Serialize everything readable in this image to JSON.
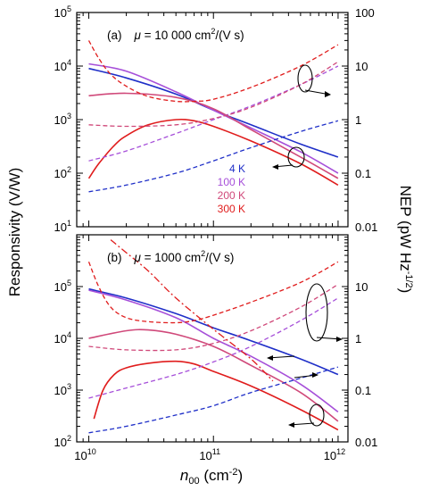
{
  "chart_data": [
    {
      "panel": "(a)",
      "title": "μ = 10 000 cm²/(V s)",
      "type": "line",
      "x_scale": "log",
      "y_left_scale": "log",
      "y_right_scale": "log",
      "xlim": [
        8000000000.0,
        1200000000000.0
      ],
      "ylim_left": [
        10,
        100000
      ],
      "ylim_right": [
        0.01,
        100
      ],
      "legend_position": "center-right",
      "legend": [
        {
          "name": "4 K",
          "color": "#1f2fc8"
        },
        {
          "name": "100 K",
          "color": "#a64fd9"
        },
        {
          "name": "200 K",
          "color": "#d0497a"
        },
        {
          "name": "300 K",
          "color": "#e01c1c"
        }
      ],
      "series": [
        {
          "name": "4 K",
          "quantity": "responsivity",
          "axis": "left",
          "style": "solid",
          "color": "#1f2fc8",
          "x": [
            10000000000.0,
            20000000000.0,
            50000000000.0,
            100000000000.0,
            200000000000.0,
            500000000000.0,
            1000000000000.0
          ],
          "values": [
            9000,
            6000,
            3000,
            1500,
            800,
            350,
            200
          ]
        },
        {
          "name": "100 K",
          "quantity": "responsivity",
          "axis": "left",
          "style": "solid",
          "color": "#a64fd9",
          "x": [
            10000000000.0,
            20000000000.0,
            50000000000.0,
            100000000000.0,
            200000000000.0,
            500000000000.0,
            1000000000000.0
          ],
          "values": [
            11000,
            8000,
            3300,
            1500,
            700,
            250,
            100
          ]
        },
        {
          "name": "200 K",
          "quantity": "responsivity",
          "axis": "left",
          "style": "solid",
          "color": "#d0497a",
          "x": [
            10000000000.0,
            20000000000.0,
            50000000000.0,
            100000000000.0,
            200000000000.0,
            500000000000.0,
            1000000000000.0
          ],
          "values": [
            2800,
            3100,
            2600,
            1600,
            650,
            200,
            80
          ]
        },
        {
          "name": "300 K",
          "quantity": "responsivity",
          "axis": "left",
          "style": "solid",
          "color": "#e01c1c",
          "x": [
            10000000000.0,
            12000000000.0,
            16000000000.0,
            20000000000.0,
            30000000000.0,
            50000000000.0,
            70000000000.0,
            100000000000.0,
            200000000000.0,
            500000000000.0,
            1000000000000.0
          ],
          "values": [
            80,
            150,
            330,
            500,
            800,
            1000,
            950,
            750,
            400,
            150,
            60
          ]
        },
        {
          "name": "4 K",
          "quantity": "NEP",
          "axis": "right",
          "style": "dashed",
          "color": "#1f2fc8",
          "x": [
            10000000000.0,
            20000000000.0,
            50000000000.0,
            100000000000.0,
            200000000000.0,
            500000000000.0,
            1000000000000.0
          ],
          "values": [
            0.045,
            0.06,
            0.1,
            0.17,
            0.3,
            0.6,
            0.95
          ]
        },
        {
          "name": "100 K",
          "quantity": "NEP",
          "axis": "right",
          "style": "dashed",
          "color": "#a64fd9",
          "x": [
            10000000000.0,
            20000000000.0,
            50000000000.0,
            100000000000.0,
            200000000000.0,
            500000000000.0,
            1000000000000.0
          ],
          "values": [
            0.17,
            0.26,
            0.55,
            1.0,
            1.8,
            4.5,
            10
          ]
        },
        {
          "name": "200 K",
          "quantity": "NEP",
          "axis": "right",
          "style": "dashed",
          "color": "#d0497a",
          "x": [
            10000000000.0,
            20000000000.0,
            50000000000.0,
            100000000000.0,
            200000000000.0,
            500000000000.0,
            1000000000000.0
          ],
          "values": [
            0.8,
            0.75,
            0.8,
            1.05,
            1.7,
            4.5,
            12
          ]
        },
        {
          "name": "300 K",
          "quantity": "NEP",
          "axis": "right",
          "style": "dashed",
          "color": "#e01c1c",
          "x": [
            10000000000.0,
            12000000000.0,
            15000000000.0,
            20000000000.0,
            30000000000.0,
            50000000000.0,
            70000000000.0,
            100000000000.0,
            200000000000.0,
            500000000000.0,
            1000000000000.0
          ],
          "values": [
            30,
            14,
            7,
            4.2,
            2.7,
            2.2,
            2.2,
            2.4,
            4,
            10,
            25
          ]
        }
      ]
    },
    {
      "panel": "(b)",
      "title": "μ = 1000 cm²/(V s)",
      "type": "line",
      "x_scale": "log",
      "y_left_scale": "log",
      "y_right_scale": "log",
      "xlim": [
        8000000000.0,
        1200000000000.0
      ],
      "ylim_left": [
        100,
        1000000
      ],
      "ylim_right": [
        0.01,
        100
      ],
      "series": [
        {
          "name": "4 K",
          "quantity": "responsivity",
          "axis": "left",
          "style": "solid",
          "color": "#1f2fc8",
          "x": [
            10000000000.0,
            20000000000.0,
            50000000000.0,
            100000000000.0,
            200000000000.0,
            500000000000.0,
            1000000000000.0
          ],
          "values": [
            90000,
            60000,
            30000,
            16000,
            9000,
            4000,
            2000
          ]
        },
        {
          "name": "100 K",
          "quantity": "responsivity",
          "axis": "left",
          "style": "solid",
          "color": "#a64fd9",
          "x": [
            10000000000.0,
            20000000000.0,
            50000000000.0,
            100000000000.0,
            200000000000.0,
            500000000000.0,
            1000000000000.0
          ],
          "values": [
            85000,
            55000,
            25000,
            10000,
            4500,
            1300,
            380
          ]
        },
        {
          "name": "200 K",
          "quantity": "responsivity",
          "axis": "left",
          "style": "solid",
          "color": "#d0497a",
          "x": [
            10000000000.0,
            20000000000.0,
            30000000000.0,
            50000000000.0,
            100000000000.0,
            200000000000.0,
            500000000000.0,
            1000000000000.0
          ],
          "values": [
            10000,
            14000,
            14500,
            12000,
            7000,
            3000,
            900,
            250
          ]
        },
        {
          "name": "300 K",
          "quantity": "responsivity",
          "axis": "left",
          "style": "solid",
          "color": "#e01c1c",
          "x": [
            11000000000.0,
            13000000000.0,
            16000000000.0,
            20000000000.0,
            30000000000.0,
            50000000000.0,
            70000000000.0,
            100000000000.0,
            200000000000.0,
            500000000000.0,
            1000000000000.0
          ],
          "values": [
            280,
            1000,
            2000,
            2700,
            3300,
            3600,
            3200,
            2300,
            1200,
            420,
            170
          ]
        },
        {
          "name": "4 K",
          "quantity": "NEP",
          "axis": "right",
          "style": "dashed",
          "color": "#1f2fc8",
          "x": [
            10000000000.0,
            20000000000.0,
            50000000000.0,
            100000000000.0,
            200000000000.0,
            500000000000.0,
            1000000000000.0
          ],
          "values": [
            0.015,
            0.02,
            0.033,
            0.05,
            0.09,
            0.17,
            0.28
          ]
        },
        {
          "name": "100 K",
          "quantity": "NEP",
          "axis": "right",
          "style": "dashed",
          "color": "#a64fd9",
          "x": [
            10000000000.0,
            20000000000.0,
            50000000000.0,
            100000000000.0,
            200000000000.0,
            500000000000.0,
            1000000000000.0
          ],
          "values": [
            0.07,
            0.11,
            0.2,
            0.35,
            0.7,
            2.2,
            6
          ]
        },
        {
          "name": "200 K",
          "quantity": "NEP",
          "axis": "right",
          "style": "dashed",
          "color": "#d0497a",
          "x": [
            10000000000.0,
            20000000000.0,
            50000000000.0,
            100000000000.0,
            200000000000.0,
            500000000000.0,
            1000000000000.0
          ],
          "values": [
            0.7,
            0.6,
            0.6,
            0.8,
            1.4,
            4,
            11
          ]
        },
        {
          "name": "300 K",
          "quantity": "NEP",
          "axis": "right",
          "style": "dashed",
          "color": "#e01c1c",
          "x": [
            10000000000.0,
            12000000000.0,
            15000000000.0,
            20000000000.0,
            30000000000.0,
            50000000000.0,
            70000000000.0,
            100000000000.0,
            200000000000.0,
            500000000000.0,
            1000000000000.0
          ],
          "values": [
            30,
            10,
            4,
            2.5,
            2.1,
            2,
            2.2,
            2.8,
            5,
            12,
            30
          ]
        },
        {
          "name": "300 K",
          "quantity": "NEP",
          "axis": "right",
          "style": "dashdot",
          "color": "#e01c1c",
          "x": [
            15000000000.0,
            20000000000.0,
            30000000000.0,
            50000000000.0,
            100000000000.0,
            200000000000.0,
            300000000000.0
          ],
          "values": [
            80,
            45,
            20,
            6,
            1.5,
            0.4,
            0.15
          ]
        }
      ]
    }
  ],
  "labels": {
    "y_left": "Responsivity (V/W)",
    "y_right": "NEP (pW Hz",
    "y_right_sup": "-1/2",
    "y_right_end": ")",
    "x": "n",
    "x_sub": "00",
    "x_unit": " (cm",
    "x_unit_sup": "-2",
    "x_unit_end": ")"
  },
  "panel_titles": [
    {
      "label": "(a)",
      "mu": "μ",
      "value": " = 10 000 cm",
      "sup": "2",
      "unit": "/(V s)"
    },
    {
      "label": "(b)",
      "mu": "μ",
      "value": " = 1000 cm",
      "sup": "2",
      "unit": "/(V s)"
    }
  ],
  "x_ticks": [
    {
      "base": "10",
      "exp": "10"
    },
    {
      "base": "10",
      "exp": "11"
    },
    {
      "base": "10",
      "exp": "12"
    }
  ],
  "y_left_ticks": [
    [
      {
        "base": "10",
        "exp": "1"
      },
      {
        "base": "10",
        "exp": "2"
      },
      {
        "base": "10",
        "exp": "3"
      },
      {
        "base": "10",
        "exp": "4"
      },
      {
        "base": "10",
        "exp": "5"
      }
    ],
    [
      {
        "base": "10",
        "exp": "2"
      },
      {
        "base": "10",
        "exp": "3"
      },
      {
        "base": "10",
        "exp": "4"
      },
      {
        "base": "10",
        "exp": "5"
      }
    ]
  ],
  "y_right_ticks": [
    [
      "0.01",
      "0.1",
      "1",
      "10",
      "100"
    ],
    [
      "0.01",
      "0.1",
      "1",
      "10"
    ]
  ]
}
